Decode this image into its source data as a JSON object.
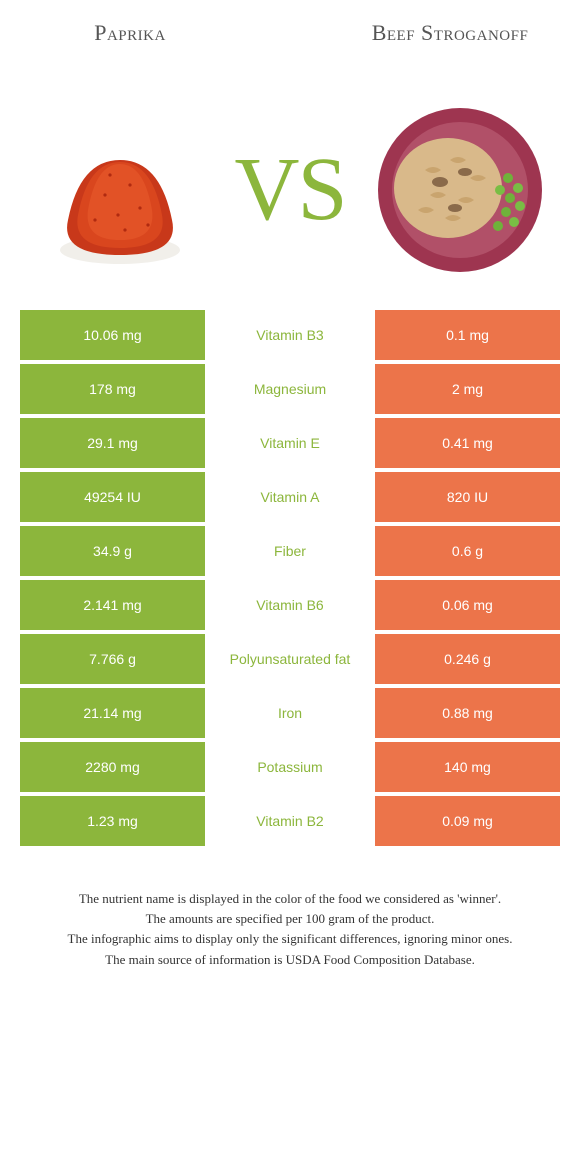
{
  "colors": {
    "left_bg": "#8cb63c",
    "right_bg": "#ec744a",
    "nutrient_text": "#8cb63c",
    "value_text": "#ffffff",
    "title_text": "#555555"
  },
  "header": {
    "left_title": "Paprika",
    "right_title": "Beef Stroganoff",
    "vs_label": "VS"
  },
  "rows": [
    {
      "nutrient": "Vitamin B3",
      "left": "10.06 mg",
      "right": "0.1 mg"
    },
    {
      "nutrient": "Magnesium",
      "left": "178 mg",
      "right": "2 mg"
    },
    {
      "nutrient": "Vitamin E",
      "left": "29.1 mg",
      "right": "0.41 mg"
    },
    {
      "nutrient": "Vitamin A",
      "left": "49254 IU",
      "right": "820 IU"
    },
    {
      "nutrient": "Fiber",
      "left": "34.9 g",
      "right": "0.6 g"
    },
    {
      "nutrient": "Vitamin B6",
      "left": "2.141 mg",
      "right": "0.06 mg"
    },
    {
      "nutrient": "Polyunsaturated fat",
      "left": "7.766 g",
      "right": "0.246 g"
    },
    {
      "nutrient": "Iron",
      "left": "21.14 mg",
      "right": "0.88 mg"
    },
    {
      "nutrient": "Potassium",
      "left": "2280 mg",
      "right": "140 mg"
    },
    {
      "nutrient": "Vitamin B2",
      "left": "1.23 mg",
      "right": "0.09 mg"
    }
  ],
  "footnotes": [
    "The nutrient name is displayed in the color of the food we considered as 'winner'.",
    "The amounts are specified per 100 gram of the product.",
    "The infographic aims to display only the significant differences, ignoring minor ones.",
    "The main source of information is USDA Food Composition Database."
  ]
}
